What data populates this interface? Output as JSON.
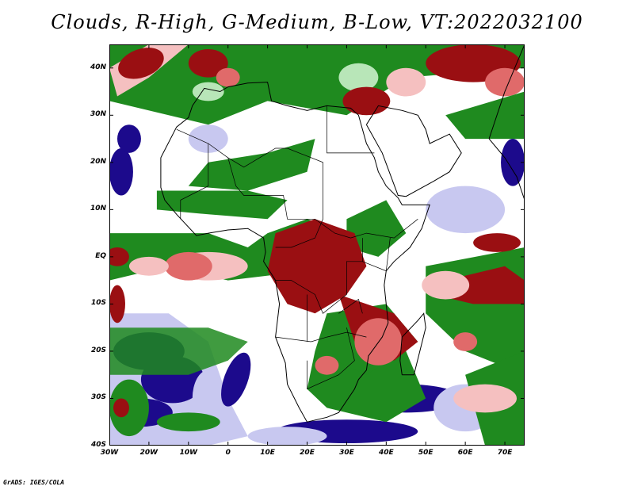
{
  "title": "Clouds, R-High, G-Medium, B-Low, VT:2022032100",
  "credit": "GrADS: IGES/COLA",
  "map": {
    "lon_range": [
      -30,
      75
    ],
    "lat_range": [
      -40,
      45
    ],
    "lat_ticks": [
      "40N",
      "30N",
      "20N",
      "10N",
      "EQ",
      "10S",
      "20S",
      "30S",
      "40S"
    ],
    "lon_ticks": [
      "30W",
      "20W",
      "10W",
      "0",
      "10E",
      "20E",
      "30E",
      "40E",
      "50E",
      "60E",
      "70E"
    ],
    "cloud_colors": {
      "high_dark": "#9a0f12",
      "high_medium": "#e06a6a",
      "high_light": "#f5c0c0",
      "medium": "#1f8a1f",
      "medium_light": "#b8e6b8",
      "low_dark": "#1c0a8c",
      "low_light": "#c8c8f0"
    }
  }
}
